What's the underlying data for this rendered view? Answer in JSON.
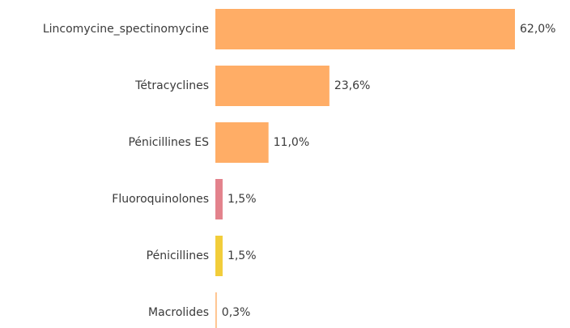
{
  "chart_data": {
    "type": "barh",
    "categories": [
      "Lincomycine_spectinomycine",
      "Tétracyclines",
      "Pénicillines ES",
      "Fluoroquinolones",
      "Pénicillines",
      "Macrolides"
    ],
    "values": [
      62.0,
      23.6,
      11.0,
      1.5,
      1.5,
      0.3
    ],
    "value_labels": [
      "62,0%",
      "23,6%",
      "11,0%",
      "1,5%",
      "1,5%",
      "0,3%"
    ],
    "colors": [
      "#ffad66",
      "#ffad66",
      "#ffad66",
      "#e3828c",
      "#f2cd3a",
      "#ffbf85"
    ]
  }
}
